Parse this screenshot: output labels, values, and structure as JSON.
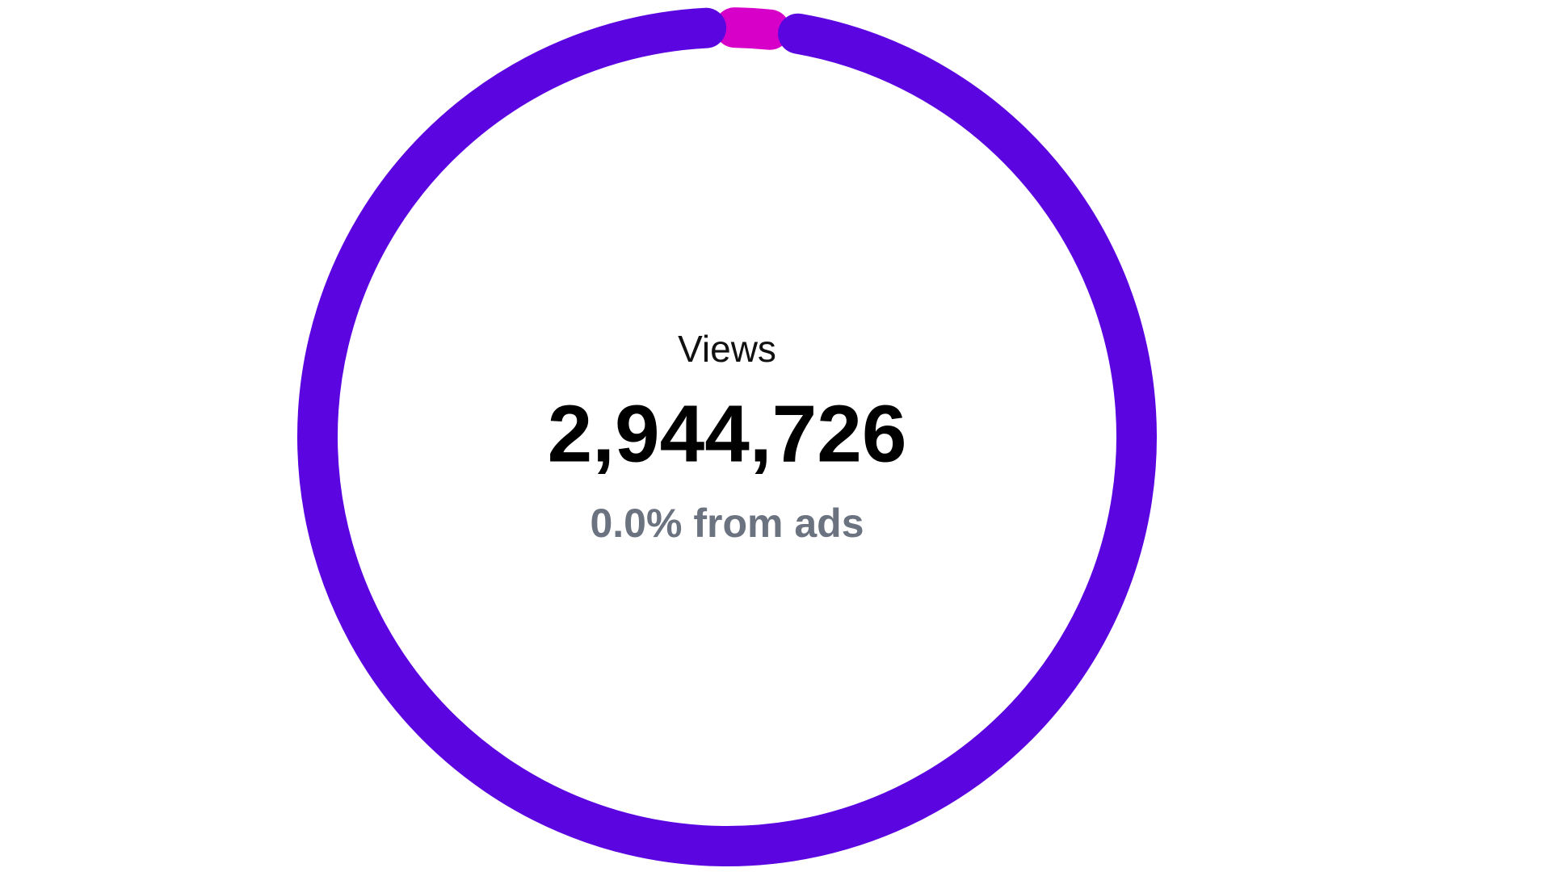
{
  "chart_data": {
    "type": "donut",
    "series": [
      {
        "color": "#5b06e0",
        "values": [
          98.6
        ]
      },
      {
        "color": "#d600c8",
        "values": [
          1.4
        ]
      }
    ],
    "center_label": "Views",
    "center_value": "2,944,726",
    "center_subtitle": "0.0% from ads"
  }
}
